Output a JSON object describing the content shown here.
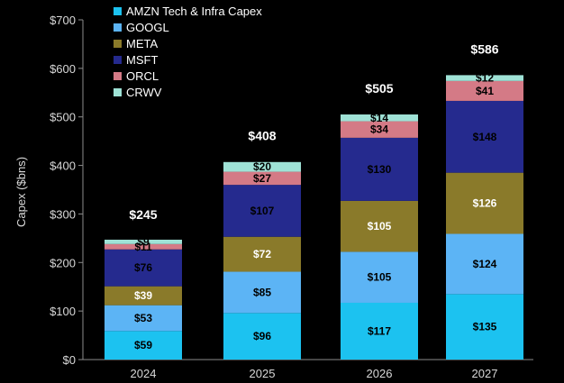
{
  "chart_data": {
    "type": "bar",
    "stacked": true,
    "title": "",
    "xlabel": "",
    "ylabel": "Capex ($bns)",
    "ylim": [
      0,
      700
    ],
    "ytick_labels": [
      "$0",
      "$100",
      "$200",
      "$300",
      "$400",
      "$500",
      "$600",
      "$700"
    ],
    "yticks": [
      0,
      100,
      200,
      300,
      400,
      500,
      600,
      700
    ],
    "categories": [
      "2024",
      "2025",
      "2026",
      "2027"
    ],
    "series": [
      {
        "name": "AMZN Tech & Infra Capex",
        "color": "#1cc2f0",
        "label_color": "#000000",
        "values": [
          59,
          96,
          117,
          135
        ],
        "labels": [
          "$59",
          "$96",
          "$117",
          "$135"
        ]
      },
      {
        "name": "GOOGL",
        "color": "#5cb4f5",
        "label_color": "#000000",
        "values": [
          53,
          85,
          105,
          124
        ],
        "labels": [
          "$53",
          "$85",
          "$105",
          "$124"
        ]
      },
      {
        "name": "META",
        "color": "#8a7a2a",
        "label_color": "#ffffff",
        "values": [
          39,
          72,
          105,
          126
        ],
        "labels": [
          "$39",
          "$72",
          "$105",
          "$126"
        ]
      },
      {
        "name": "MSFT",
        "color": "#252a8e",
        "label_color": "#000000",
        "values": [
          76,
          107,
          130,
          148
        ],
        "labels": [
          "$76",
          "$107",
          "$130",
          "$148"
        ]
      },
      {
        "name": "ORCL",
        "color": "#d47a86",
        "label_color": "#000000",
        "values": [
          11,
          27,
          34,
          41
        ],
        "labels": [
          "$11",
          "$27",
          "$34",
          "$41"
        ]
      },
      {
        "name": "CRWV",
        "color": "#9fe2d6",
        "label_color": "#000000",
        "values": [
          9,
          20,
          14,
          12
        ],
        "labels": [
          "$9",
          "$20",
          "$14",
          "$12"
        ]
      }
    ],
    "totals": [
      245,
      408,
      505,
      586
    ],
    "total_labels": [
      "$245",
      "$408",
      "$505",
      "$586"
    ],
    "legend": "top-left",
    "grid": false
  }
}
